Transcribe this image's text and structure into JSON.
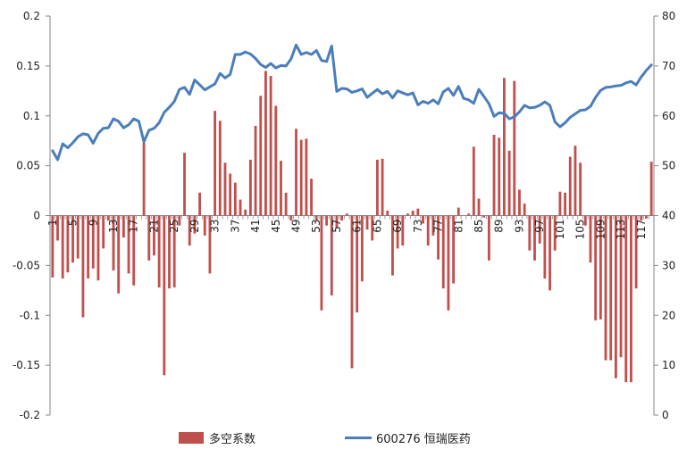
{
  "chart_data": {
    "type": "bar+line",
    "left_axis": {
      "ylim": [
        -0.2,
        0.2
      ],
      "ticks": [
        -0.2,
        -0.15,
        -0.1,
        -0.05,
        0,
        0.05,
        0.1,
        0.15,
        0.2
      ],
      "tick_labels": [
        "-0.2",
        "-0.15",
        "-0.1",
        "-0.05",
        "0",
        "0.05",
        "0.1",
        "0.15",
        "0.2"
      ]
    },
    "right_axis": {
      "ylim": [
        0,
        80
      ],
      "ticks": [
        0,
        10,
        20,
        30,
        40,
        50,
        60,
        70,
        80
      ],
      "tick_labels": [
        "0",
        "10",
        "20",
        "30",
        "40",
        "50",
        "60",
        "70",
        "80"
      ]
    },
    "x": {
      "count": 119,
      "tick_labels": [
        "1",
        "5",
        "9",
        "13",
        "17",
        "21",
        "25",
        "29",
        "33",
        "37",
        "41",
        "45",
        "49",
        "53",
        "57",
        "61",
        "65",
        "69",
        "73",
        "77",
        "81",
        "85",
        "89",
        "93",
        "97",
        "101",
        "105",
        "109",
        "113",
        "117"
      ],
      "tick_positions": [
        1,
        5,
        9,
        13,
        17,
        21,
        25,
        29,
        33,
        37,
        41,
        45,
        49,
        53,
        57,
        61,
        65,
        69,
        73,
        77,
        81,
        85,
        89,
        93,
        97,
        101,
        105,
        109,
        113,
        117
      ]
    },
    "series": [
      {
        "name": "多空系数",
        "kind": "bar",
        "axis": "left",
        "color": "#C0504D",
        "values": [
          -0.062,
          -0.025,
          -0.063,
          -0.057,
          -0.047,
          -0.043,
          -0.102,
          -0.063,
          -0.053,
          -0.065,
          -0.033,
          -0.005,
          -0.055,
          -0.078,
          -0.022,
          -0.058,
          -0.07,
          0.0,
          0.073,
          -0.045,
          -0.04,
          -0.072,
          -0.16,
          -0.073,
          -0.072,
          -0.01,
          0.063,
          -0.03,
          -0.018,
          0.023,
          -0.02,
          -0.058,
          0.105,
          0.095,
          0.053,
          0.042,
          0.033,
          0.016,
          0.006,
          0.056,
          0.09,
          0.12,
          0.145,
          0.14,
          0.11,
          0.055,
          0.023,
          -0.005,
          0.087,
          0.076,
          0.077,
          0.037,
          -0.005,
          -0.095,
          -0.01,
          -0.08,
          -0.012,
          -0.005,
          0.002,
          -0.153,
          -0.097,
          -0.066,
          -0.014,
          -0.025,
          0.056,
          0.057,
          0.005,
          -0.06,
          -0.033,
          -0.03,
          0.002,
          0.005,
          0.007,
          -0.008,
          -0.03,
          -0.02,
          -0.044,
          -0.073,
          -0.095,
          -0.068,
          0.008,
          0.0,
          0.002,
          0.069,
          0.017,
          -0.002,
          -0.045,
          0.081,
          0.078,
          0.138,
          0.065,
          0.135,
          0.026,
          0.012,
          -0.035,
          -0.045,
          -0.028,
          -0.063,
          -0.075,
          -0.035,
          0.024,
          0.023,
          0.059,
          0.07,
          0.053,
          -0.01,
          -0.047,
          -0.105,
          -0.104,
          -0.145,
          -0.145,
          -0.163,
          -0.142,
          -0.167,
          -0.167,
          -0.073,
          -0.005,
          -0.003,
          0.054
        ]
      },
      {
        "name": "600276 恒瑞医药",
        "kind": "line",
        "axis": "right",
        "color": "#4A7EBB",
        "values": [
          53,
          51.2,
          54.4,
          53.6,
          54.6,
          55.8,
          56.4,
          56.2,
          54.5,
          56.5,
          57.5,
          57.6,
          59.4,
          58.9,
          57.6,
          58.2,
          59.4,
          58.9,
          54.8,
          57.1,
          57.5,
          58.6,
          60.7,
          61.7,
          62.9,
          65.3,
          65.7,
          64.3,
          67.2,
          66.2,
          65.2,
          65.8,
          66.4,
          68.5,
          67.6,
          68.3,
          72.3,
          72.3,
          72.8,
          72.4,
          71.5,
          70.3,
          69.7,
          70.5,
          69.6,
          70.1,
          70,
          71.4,
          74.2,
          72.3,
          72.7,
          72.3,
          73.1,
          71.1,
          70.9,
          74,
          64.9,
          65.5,
          65.4,
          64.7,
          65,
          65.4,
          63.7,
          64.5,
          65.3,
          64.4,
          64.9,
          63.6,
          65,
          64.6,
          64.2,
          64.6,
          62.2,
          62.9,
          62.5,
          63.2,
          62.4,
          64.8,
          65.5,
          64.1,
          65.9,
          63.5,
          63.2,
          62.5,
          65.3,
          63.9,
          62.4,
          59.9,
          60.6,
          60.5,
          59.4,
          59.8,
          60.8,
          62.1,
          61.6,
          61.7,
          62.1,
          62.8,
          62.1,
          58.8,
          57.8,
          58.6,
          59.7,
          60.4,
          61.1,
          61.2,
          61.9,
          63.7,
          65.1,
          65.7,
          65.8,
          66,
          66.1,
          66.6,
          66.9,
          66.2,
          67.8,
          69.1,
          70.2
        ]
      }
    ],
    "legend": [
      "多空系数",
      "600276 恒瑞医药"
    ],
    "legend_position": "bottom"
  }
}
